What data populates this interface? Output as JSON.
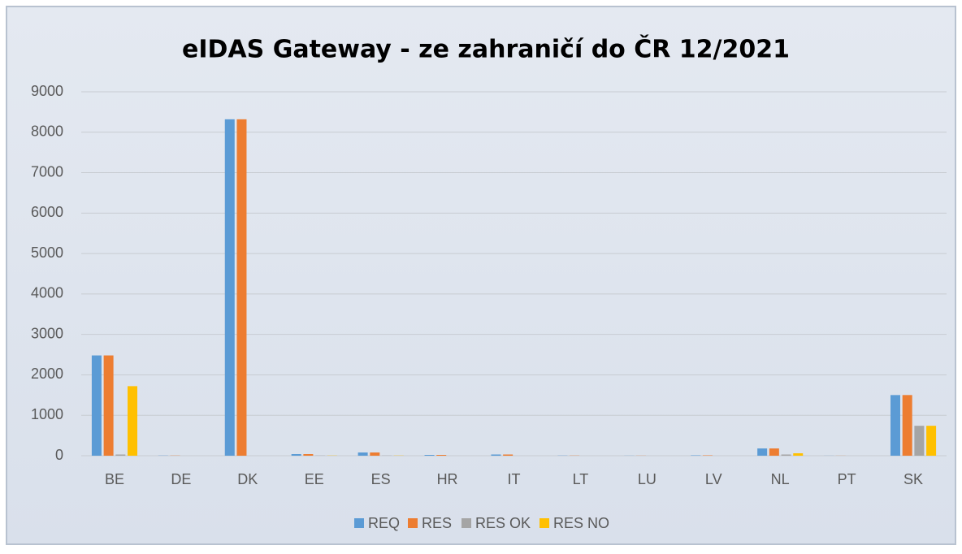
{
  "chart_data": {
    "type": "bar",
    "title": "eIDAS Gateway - ze zahraničí do ČR 12/2021",
    "categories": [
      "BE",
      "DE",
      "DK",
      "EE",
      "ES",
      "HR",
      "IT",
      "LT",
      "LU",
      "LV",
      "NL",
      "PT",
      "SK"
    ],
    "series": [
      {
        "name": "REQ",
        "color": "#5b9bd5",
        "values": [
          2480,
          5,
          8320,
          40,
          80,
          20,
          30,
          5,
          3,
          10,
          180,
          2,
          1500
        ]
      },
      {
        "name": "RES",
        "color": "#ed7d31",
        "values": [
          2480,
          5,
          8320,
          40,
          80,
          20,
          30,
          5,
          3,
          10,
          180,
          2,
          1500
        ]
      },
      {
        "name": "RES OK",
        "color": "#a5a5a5",
        "values": [
          30,
          0,
          0,
          5,
          5,
          0,
          0,
          0,
          0,
          0,
          30,
          0,
          740
        ]
      },
      {
        "name": "RES NO",
        "color": "#ffc000",
        "values": [
          1720,
          0,
          0,
          5,
          5,
          0,
          0,
          0,
          0,
          0,
          60,
          0,
          740
        ]
      }
    ],
    "ylim": [
      0,
      9000
    ],
    "yticks": [
      0,
      1000,
      2000,
      3000,
      4000,
      5000,
      6000,
      7000,
      8000,
      9000
    ],
    "grid": true,
    "legend": "bottom"
  }
}
